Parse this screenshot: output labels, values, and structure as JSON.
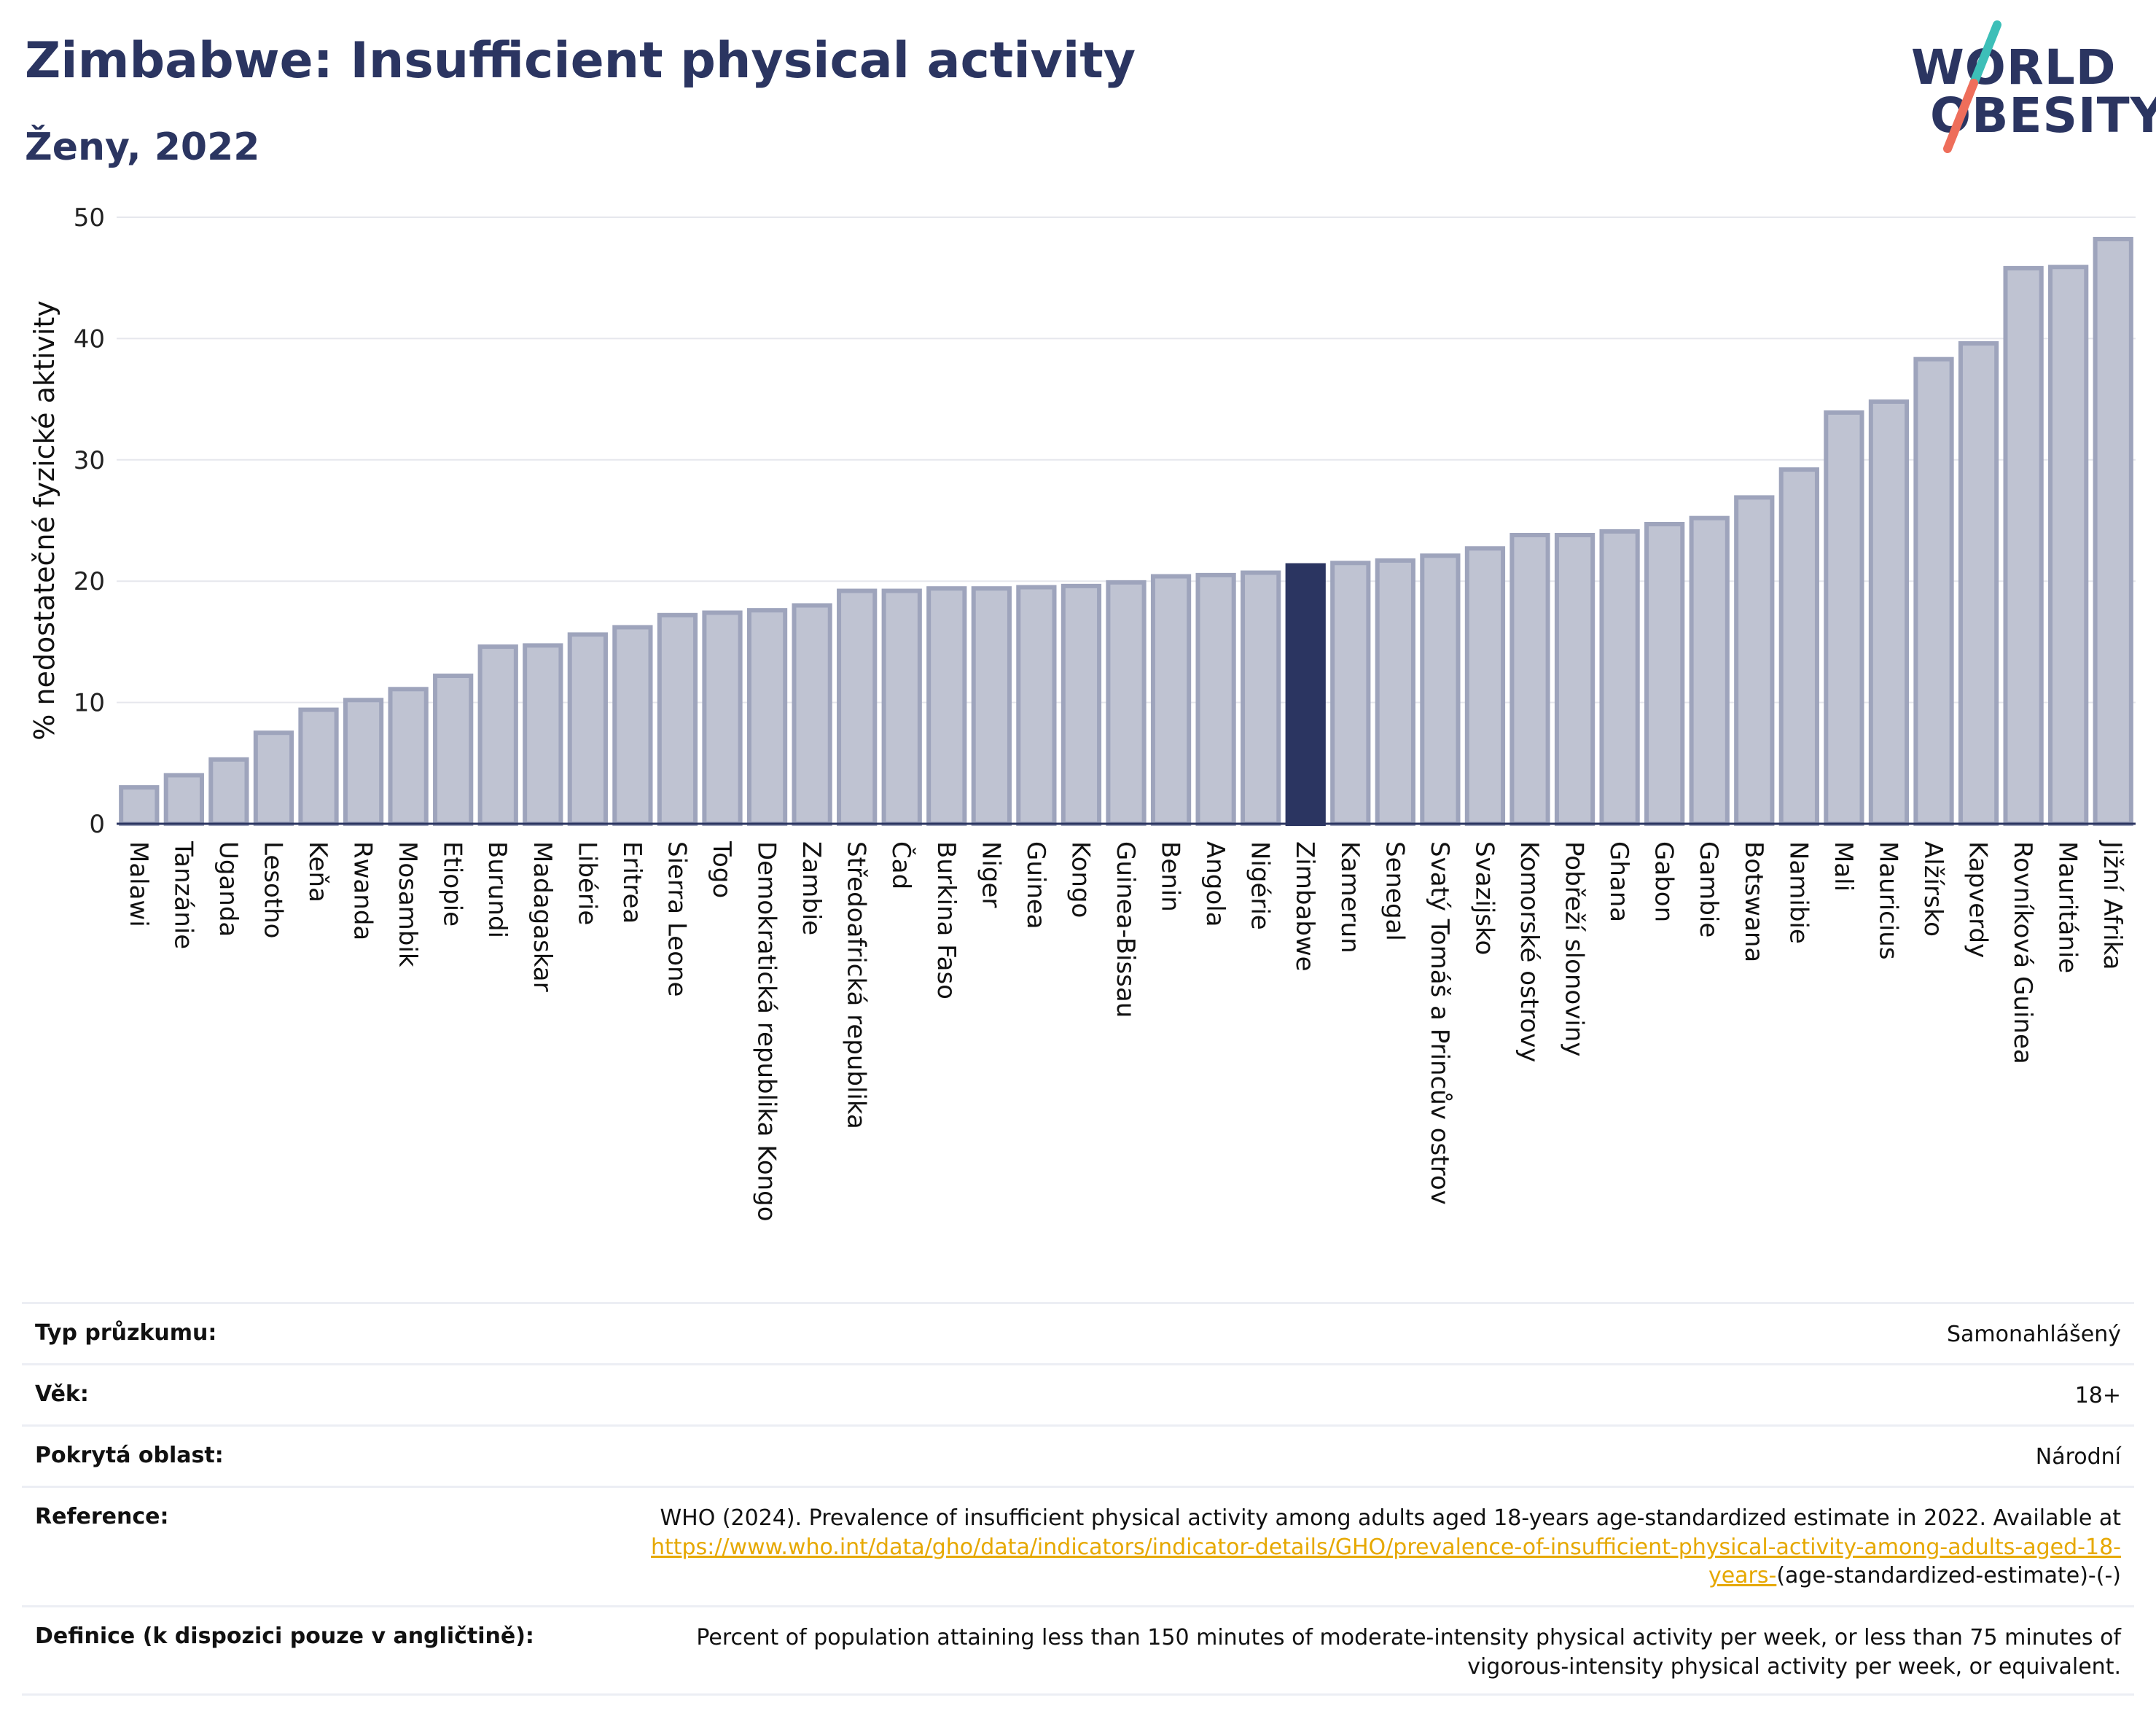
{
  "header": {
    "title": "Zimbabwe: Insufficient physical activity",
    "subtitle": "Ženy, 2022"
  },
  "logo": {
    "line1": "WORLD",
    "line2": "OBESITY",
    "slash_colors": [
      "#3dbfb8",
      "#ee6e5b"
    ]
  },
  "colors": {
    "bar": "#bfc3d2",
    "bar_edge": "#9ea4bc",
    "highlight": "#2b3561",
    "title": "#2b3561",
    "link": "#e6a800"
  },
  "chart_data": {
    "type": "bar",
    "ylabel": "% nedostatečné fyzické aktivity",
    "ylim": [
      0,
      50
    ],
    "yticks": [
      0,
      10,
      20,
      30,
      40,
      50
    ],
    "grid": true,
    "highlight": "Zimbabwe",
    "categories": [
      "Malawi",
      "Tanzánie",
      "Uganda",
      "Lesotho",
      "Keňa",
      "Rwanda",
      "Mosambik",
      "Etiopie",
      "Burundi",
      "Madagaskar",
      "Libérie",
      "Eritrea",
      "Sierra Leone",
      "Togo",
      "Demokratická republika Kongo",
      "Zambie",
      "Středoafrická republika",
      "Čad",
      "Burkina Faso",
      "Niger",
      "Guinea",
      "Kongo",
      "Guinea-Bissau",
      "Benin",
      "Angola",
      "Nigérie",
      "Zimbabwe",
      "Kamerun",
      "Senegal",
      "Svatý Tomáš a Princův ostrov",
      "Svazijsko",
      "Komorské ostrovy",
      "Pobřeží slonoviny",
      "Ghana",
      "Gabon",
      "Gambie",
      "Botswana",
      "Namibie",
      "Mali",
      "Mauricius",
      "Alžírsko",
      "Kapverdy",
      "Rovníková Guinea",
      "Mauritánie",
      "Jižní Afrika"
    ],
    "values": [
      3.0,
      4.0,
      5.3,
      7.5,
      9.4,
      10.2,
      11.1,
      12.2,
      14.6,
      14.7,
      15.6,
      16.2,
      17.2,
      17.4,
      17.6,
      18.0,
      19.2,
      19.2,
      19.4,
      19.4,
      19.5,
      19.6,
      19.9,
      20.4,
      20.5,
      20.7,
      21.3,
      21.5,
      21.7,
      22.1,
      22.7,
      23.8,
      23.8,
      24.1,
      24.7,
      25.2,
      26.9,
      29.2,
      33.9,
      34.8,
      38.3,
      39.6,
      45.8,
      45.9,
      48.2
    ]
  },
  "info": [
    {
      "label": "Typ průzkumu:",
      "value": "Samonahlášený"
    },
    {
      "label": "Věk:",
      "value": "18+"
    },
    {
      "label": "Pokrytá oblast:",
      "value": "Národní"
    },
    {
      "label": "Reference:",
      "value": "WHO (2024). Prevalence of insufficient physical activity among adults aged 18-years age-standardized estimate in 2022. Available at",
      "link": "https://www.who.int/data/gho/data/indicators/indicator-details/GHO/prevalence-of-insufficient-physical-activity-among-adults-aged-18-years-",
      "suffix": "(age-standardized-estimate)-(-)"
    },
    {
      "label": "Definice (k dispozici pouze v angličtině):",
      "value": "Percent of population attaining less than 150 minutes of moderate-intensity physical activity per week, or less than 75 minutes of vigorous-intensity physical activity per week, or equivalent."
    }
  ]
}
